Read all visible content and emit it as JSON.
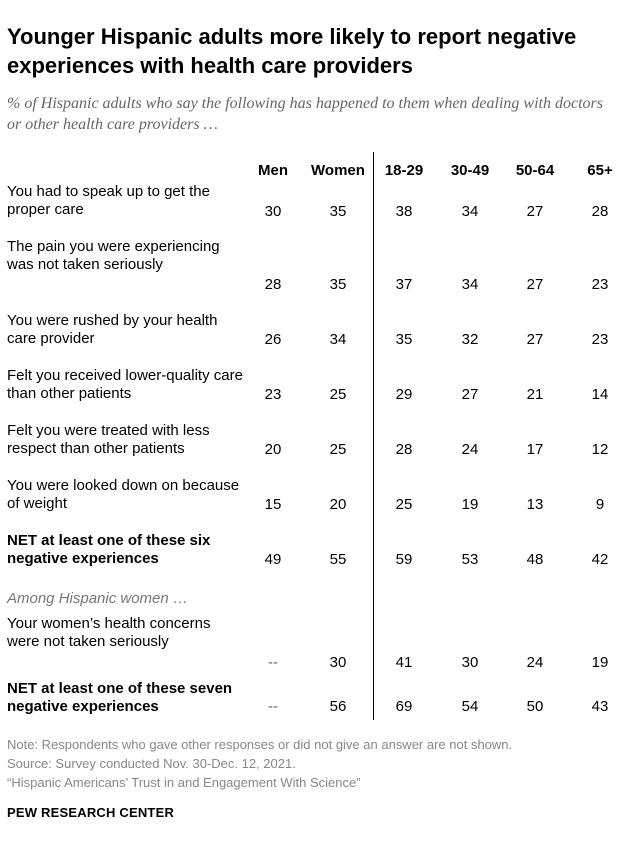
{
  "chart_data": {
    "type": "table",
    "title": "Younger Hispanic adults more likely to report negative experiences with health care providers",
    "subtitle": "% of Hispanic adults who say the following has happened to them when dealing with doctors or other health care providers …",
    "columns": [
      "Men",
      "Women",
      "18-29",
      "30-49",
      "50-64",
      "65+"
    ],
    "rows": [
      {
        "label": "You had to speak up to get the proper care",
        "values": [
          "30",
          "35",
          "38",
          "34",
          "27",
          "28"
        ],
        "bold": false
      },
      {
        "label": "The pain you were experiencing was not taken seriously",
        "values": [
          "28",
          "35",
          "37",
          "34",
          "27",
          "23"
        ],
        "bold": false
      },
      {
        "label": "You were rushed by your health care provider",
        "values": [
          "26",
          "34",
          "35",
          "32",
          "27",
          "23"
        ],
        "bold": false
      },
      {
        "label": "Felt you received lower-quality care than other patients",
        "values": [
          "23",
          "25",
          "29",
          "27",
          "21",
          "14"
        ],
        "bold": false
      },
      {
        "label": "Felt you were treated with less respect than other patients",
        "values": [
          "20",
          "25",
          "28",
          "24",
          "17",
          "12"
        ],
        "bold": false
      },
      {
        "label": "You were looked down on because of weight",
        "values": [
          "15",
          "20",
          "25",
          "19",
          "13",
          "9"
        ],
        "bold": false
      },
      {
        "label": "NET at least one of these six negative experiences",
        "values": [
          "49",
          "55",
          "59",
          "53",
          "48",
          "42"
        ],
        "bold": true
      }
    ],
    "section_label": "Among Hispanic women …",
    "women_rows": [
      {
        "label": "Your women’s health concerns were not taken seriously",
        "values": [
          "--",
          "30",
          "41",
          "30",
          "24",
          "19"
        ],
        "bold": false
      },
      {
        "label": "NET at least one of these seven negative experiences",
        "values": [
          "--",
          "56",
          "69",
          "54",
          "50",
          "43"
        ],
        "bold": true
      }
    ]
  },
  "notes": [
    "Note: Respondents who gave other responses or did not give an answer are not shown.",
    "Source: Survey conducted Nov. 30-Dec. 12, 2021.",
    "“Hispanic Americans’ Trust in and Engagement With Science”"
  ],
  "brand": "PEW RESEARCH CENTER",
  "colors": {
    "text": "#000000",
    "subtitle": "#666666",
    "note": "#888888"
  }
}
